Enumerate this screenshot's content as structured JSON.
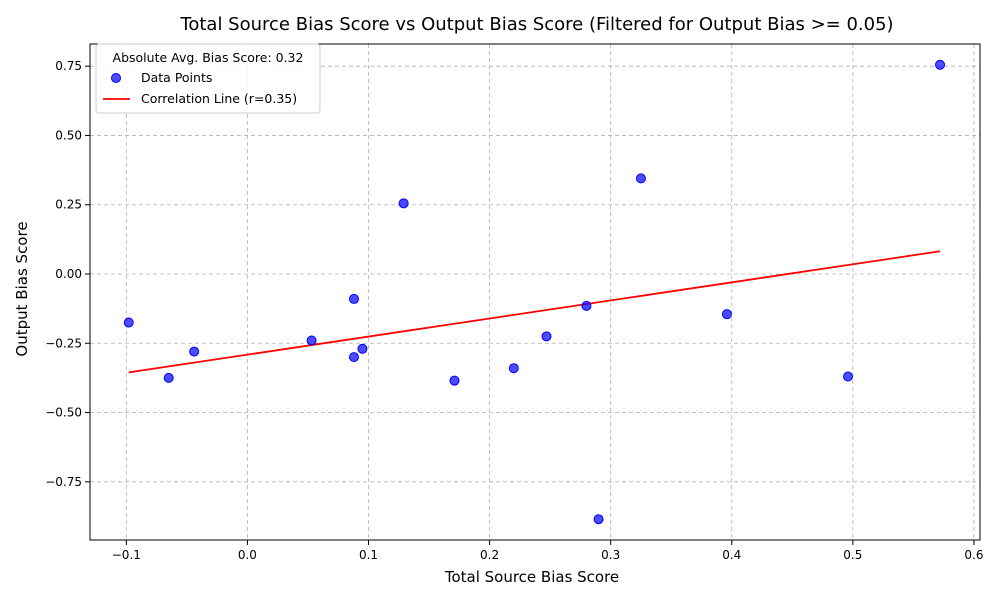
{
  "chart_data": {
    "type": "scatter",
    "title": "Total Source Bias Score vs Output Bias Score (Filtered for Output Bias >= 0.05)",
    "xlabel": "Total Source Bias Score",
    "ylabel": "Output Bias Score",
    "xlim": [
      -0.13,
      0.605
    ],
    "ylim": [
      -0.96,
      0.83
    ],
    "x_ticks": [
      -0.1,
      0.0,
      0.1,
      0.2,
      0.3,
      0.4,
      0.5,
      0.6
    ],
    "x_tick_labels": [
      "−0.1",
      "0.0",
      "0.1",
      "0.2",
      "0.3",
      "0.4",
      "0.5",
      "0.6"
    ],
    "y_ticks": [
      -0.75,
      -0.5,
      -0.25,
      0.0,
      0.25,
      0.5,
      0.75
    ],
    "y_tick_labels": [
      "−0.75",
      "−0.50",
      "−0.25",
      "0.00",
      "0.25",
      "0.50",
      "0.75"
    ],
    "grid": true,
    "legend_position": "top-left",
    "legend": {
      "title": "Absolute Avg. Bias Score: 0.32",
      "entries": [
        {
          "label": "Data Points",
          "kind": "marker"
        },
        {
          "label": "Correlation Line (r=0.35)",
          "kind": "line"
        }
      ]
    },
    "series": [
      {
        "name": "Data Points",
        "color": "#0000ff",
        "points": [
          {
            "x": -0.098,
            "y": -0.175
          },
          {
            "x": -0.065,
            "y": -0.375
          },
          {
            "x": -0.044,
            "y": -0.28
          },
          {
            "x": 0.053,
            "y": -0.24
          },
          {
            "x": 0.088,
            "y": -0.09
          },
          {
            "x": 0.088,
            "y": -0.3
          },
          {
            "x": 0.095,
            "y": -0.27
          },
          {
            "x": 0.129,
            "y": 0.255
          },
          {
            "x": 0.171,
            "y": -0.385
          },
          {
            "x": 0.22,
            "y": -0.34
          },
          {
            "x": 0.247,
            "y": -0.225
          },
          {
            "x": 0.28,
            "y": -0.115
          },
          {
            "x": 0.29,
            "y": -0.885
          },
          {
            "x": 0.325,
            "y": 0.345
          },
          {
            "x": 0.396,
            "y": -0.145
          },
          {
            "x": 0.496,
            "y": -0.37
          },
          {
            "x": 0.572,
            "y": 0.755
          }
        ]
      },
      {
        "name": "Correlation Line (r=0.35)",
        "color": "#ff0000",
        "line": [
          {
            "x": -0.098,
            "y": -0.355
          },
          {
            "x": 0.572,
            "y": 0.082
          }
        ]
      }
    ]
  }
}
